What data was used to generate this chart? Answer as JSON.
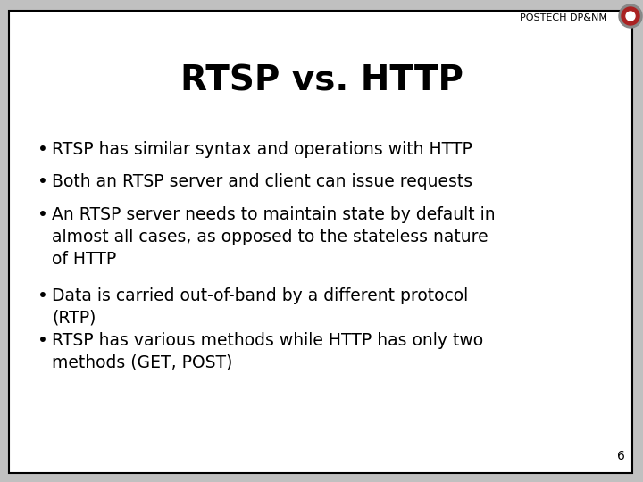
{
  "title": "RTSP vs. HTTP",
  "header_label": "POSTECH DP&NM",
  "page_number": "6",
  "background_color": "#ffffff",
  "border_color": "#000000",
  "title_fontsize": 28,
  "bullet_fontsize": 13.5,
  "bullets": [
    "RTSP has similar syntax and operations with HTTP",
    "Both an RTSP server and client can issue requests",
    "An RTSP server needs to maintain state by default in\nalmost all cases, as opposed to the stateless nature\nof HTTP",
    "Data is carried out-of-band by a different protocol\n(RTP)",
    "RTSP has various methods while HTTP has only two\nmethods (GET, POST)"
  ],
  "header_fontsize": 8,
  "page_num_fontsize": 10,
  "text_color": "#000000",
  "header_color": "#000000",
  "slide_bg": "#ffffff",
  "outer_bg": "#c0c0c0"
}
